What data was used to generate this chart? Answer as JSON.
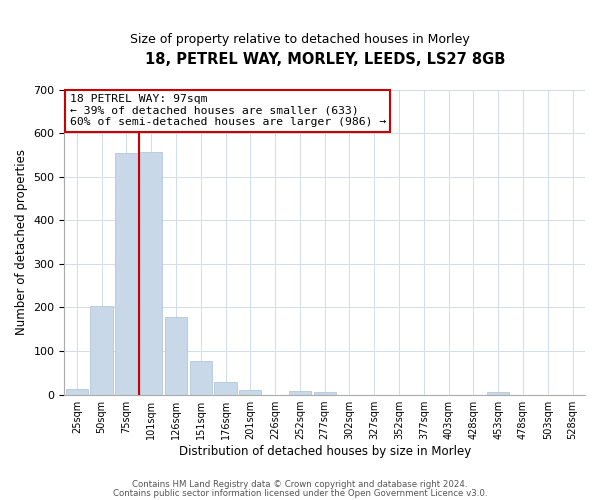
{
  "title": "18, PETREL WAY, MORLEY, LEEDS, LS27 8GB",
  "subtitle": "Size of property relative to detached houses in Morley",
  "xlabel": "Distribution of detached houses by size in Morley",
  "ylabel": "Number of detached properties",
  "bar_labels": [
    "25sqm",
    "50sqm",
    "75sqm",
    "101sqm",
    "126sqm",
    "151sqm",
    "176sqm",
    "201sqm",
    "226sqm",
    "252sqm",
    "277sqm",
    "302sqm",
    "327sqm",
    "352sqm",
    "377sqm",
    "403sqm",
    "428sqm",
    "453sqm",
    "478sqm",
    "503sqm",
    "528sqm"
  ],
  "bar_heights": [
    12,
    204,
    554,
    556,
    178,
    76,
    29,
    10,
    0,
    8,
    5,
    0,
    0,
    0,
    0,
    0,
    0,
    5,
    0,
    0,
    0
  ],
  "bar_color": "#c8d8e8",
  "bar_edge_color": "#a8c0d4",
  "vline_color": "#cc0000",
  "vline_x_index": 3,
  "ylim": [
    0,
    700
  ],
  "yticks": [
    0,
    100,
    200,
    300,
    400,
    500,
    600,
    700
  ],
  "annotation_title": "18 PETREL WAY: 97sqm",
  "annotation_line1": "← 39% of detached houses are smaller (633)",
  "annotation_line2": "60% of semi-detached houses are larger (986) →",
  "annotation_box_color": "#ffffff",
  "annotation_box_edge": "#cc0000",
  "footer1": "Contains HM Land Registry data © Crown copyright and database right 2024.",
  "footer2": "Contains public sector information licensed under the Open Government Licence v3.0."
}
